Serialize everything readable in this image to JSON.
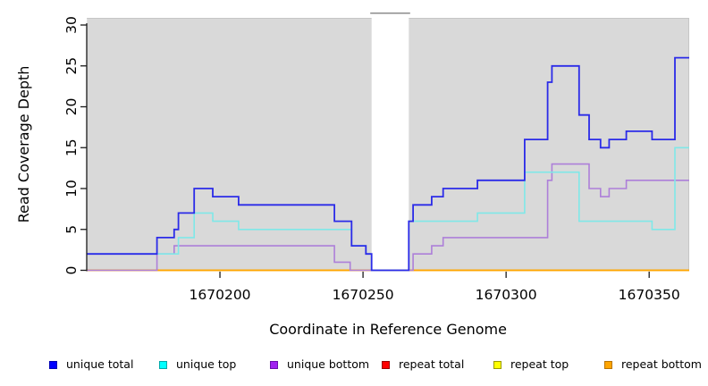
{
  "chart_data": {
    "type": "line",
    "subtype": "step-after",
    "title": "",
    "xlabel": "Coordinate in Reference Genome",
    "ylabel": "Read Coverage Depth",
    "xlim": [
      1670153.5,
      1670364
    ],
    "ylim": [
      0,
      30
    ],
    "xticks": [
      1670200,
      1670250,
      1670300,
      1670350
    ],
    "yticks": [
      0,
      5,
      10,
      15,
      20,
      25,
      30
    ],
    "grid": false,
    "plot_bg": "#d9d9d9",
    "masked_region": {
      "start": 1670253,
      "end": 1670266,
      "fill": "#ffffff",
      "border": "#8c8c8c"
    },
    "legend_position": "bottom",
    "series": [
      {
        "name": "unique total",
        "color": "#2b2be8",
        "legend_fill": "#0000ff",
        "legend_border": "#0000b4",
        "width": 1.8,
        "steps": [
          [
            1670153.5,
            2
          ],
          [
            1670178,
            4
          ],
          [
            1670184,
            5
          ],
          [
            1670185.5,
            7
          ],
          [
            1670191,
            10
          ],
          [
            1670197.5,
            9
          ],
          [
            1670206.5,
            8
          ],
          [
            1670240,
            6
          ],
          [
            1670246,
            3
          ],
          [
            1670251,
            2
          ],
          [
            1670253,
            0
          ],
          [
            1670266,
            6
          ],
          [
            1670267.5,
            8
          ],
          [
            1670274,
            9
          ],
          [
            1670278,
            10
          ],
          [
            1670290,
            11
          ],
          [
            1670306.5,
            16
          ],
          [
            1670314.5,
            23
          ],
          [
            1670316,
            25
          ],
          [
            1670325.5,
            19
          ],
          [
            1670329,
            16
          ],
          [
            1670333,
            15
          ],
          [
            1670336,
            16
          ],
          [
            1670342,
            17
          ],
          [
            1670351,
            16
          ],
          [
            1670359,
            26
          ]
        ]
      },
      {
        "name": "unique top",
        "color": "#7fe8e8",
        "legend_fill": "#00ffff",
        "legend_border": "#00a8a8",
        "width": 1.6,
        "steps": [
          [
            1670153.5,
            2
          ],
          [
            1670185.5,
            4
          ],
          [
            1670191,
            7
          ],
          [
            1670197.5,
            6
          ],
          [
            1670206.5,
            5
          ],
          [
            1670246,
            3
          ],
          [
            1670251,
            2
          ],
          [
            1670253,
            0
          ],
          [
            1670266,
            6
          ],
          [
            1670290,
            7
          ],
          [
            1670306.5,
            12
          ],
          [
            1670325.5,
            6
          ],
          [
            1670351,
            5
          ],
          [
            1670359,
            15
          ]
        ]
      },
      {
        "name": "unique bottom",
        "color": "#ad7fd9",
        "legend_fill": "#a020f0",
        "legend_border": "#6a0dad",
        "width": 1.6,
        "steps": [
          [
            1670153.5,
            0
          ],
          [
            1670178,
            2
          ],
          [
            1670184,
            3
          ],
          [
            1670240,
            1
          ],
          [
            1670245.5,
            0
          ],
          [
            1670267.5,
            2
          ],
          [
            1670274,
            3
          ],
          [
            1670278,
            4
          ],
          [
            1670314.5,
            11
          ],
          [
            1670316,
            13
          ],
          [
            1670329,
            10
          ],
          [
            1670333,
            9
          ],
          [
            1670336,
            10
          ],
          [
            1670342,
            11
          ]
        ]
      },
      {
        "name": "repeat total",
        "color": "#cc3355",
        "legend_fill": "#ff0000",
        "legend_border": "#990000",
        "width": 1.5,
        "steps": [
          [
            1670153.5,
            0
          ]
        ]
      },
      {
        "name": "repeat top",
        "color": "#ffff00",
        "legend_fill": "#ffff00",
        "legend_border": "#9a9a00",
        "width": 1.5,
        "steps": [
          [
            1670153.5,
            0
          ]
        ]
      },
      {
        "name": "repeat bottom",
        "color": "#ffa500",
        "legend_fill": "#ffa500",
        "legend_border": "#b87400",
        "width": 1.8,
        "steps": [
          [
            1670153.5,
            0
          ]
        ]
      }
    ]
  },
  "legend": {
    "items": [
      {
        "label": "unique total"
      },
      {
        "label": "unique top"
      },
      {
        "label": "unique bottom"
      },
      {
        "label": "repeat total"
      },
      {
        "label": "repeat top"
      },
      {
        "label": "repeat bottom"
      }
    ]
  }
}
